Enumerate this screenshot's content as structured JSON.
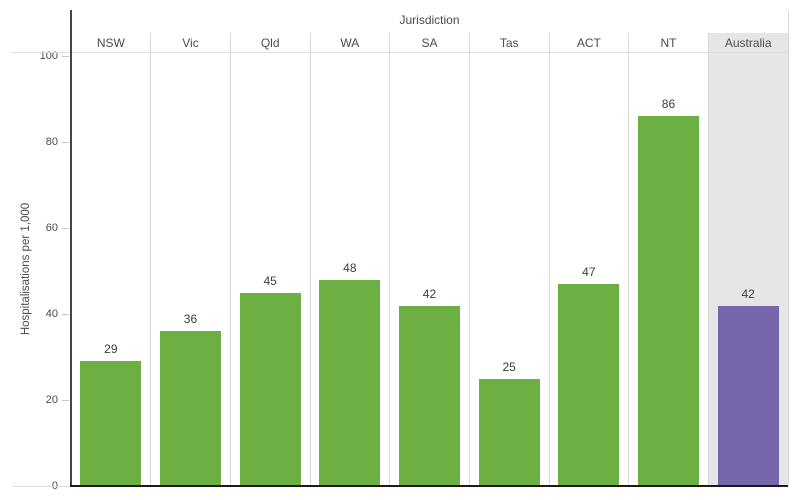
{
  "chart_data": {
    "type": "bar",
    "title": "",
    "group_label": "Jurisdiction",
    "ylabel": "Hospitalisations per 1,000",
    "categories": [
      "NSW",
      "Vic",
      "Qld",
      "WA",
      "SA",
      "Tas",
      "ACT",
      "NT",
      "Australia"
    ],
    "values": [
      29,
      36,
      45,
      48,
      42,
      25,
      47,
      86,
      42
    ],
    "yticks": [
      0,
      20,
      40,
      60,
      80,
      100
    ],
    "ylim": [
      0,
      101
    ],
    "grid": false,
    "legend_position": "none",
    "highlight_category": "Australia",
    "colors": {
      "bar_default": "#6CB043",
      "bar_highlight": "#7866AC",
      "highlight_pane_bg": "#E6E6E6",
      "axis_line_dark": "#1A1A1A",
      "separator_line": "#D8D8D8",
      "label_text": "#4B4B4B"
    }
  }
}
